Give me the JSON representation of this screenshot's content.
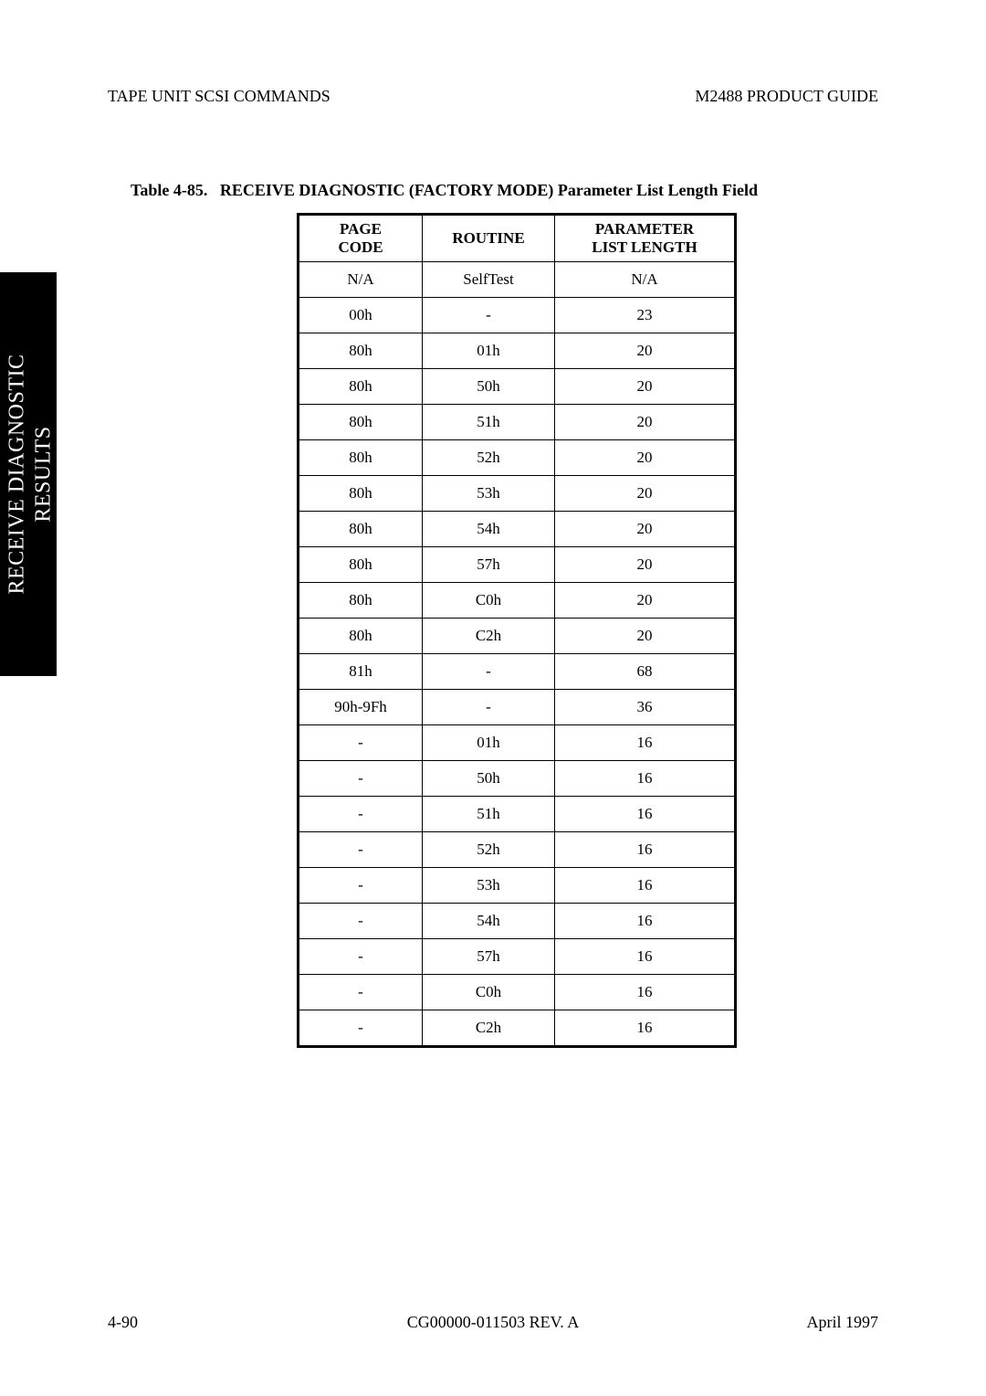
{
  "header": {
    "left": "TAPE UNIT SCSI COMMANDS",
    "right": "M2488 PRODUCT GUIDE"
  },
  "sidetab": {
    "line1": "RECEIVE DIAGNOSTIC",
    "line2": "RESULTS"
  },
  "caption": {
    "label": "Table 4-85.",
    "text": "RECEIVE DIAGNOSTIC (FACTORY MODE) Parameter List Length Field"
  },
  "table": {
    "headers": {
      "page_code_line1": "PAGE",
      "page_code_line2": "CODE",
      "routine": "ROUTINE",
      "param_line1": "PARAMETER",
      "param_line2": "LIST LENGTH"
    },
    "rows": [
      {
        "page": "N/A",
        "routine": "SelfTest",
        "param": "N/A"
      },
      {
        "page": "00h",
        "routine": "-",
        "param": "23"
      },
      {
        "page": "80h",
        "routine": "01h",
        "param": "20"
      },
      {
        "page": "80h",
        "routine": "50h",
        "param": "20"
      },
      {
        "page": "80h",
        "routine": "51h",
        "param": "20"
      },
      {
        "page": "80h",
        "routine": "52h",
        "param": "20"
      },
      {
        "page": "80h",
        "routine": "53h",
        "param": "20"
      },
      {
        "page": "80h",
        "routine": "54h",
        "param": "20"
      },
      {
        "page": "80h",
        "routine": "57h",
        "param": "20"
      },
      {
        "page": "80h",
        "routine": "C0h",
        "param": "20"
      },
      {
        "page": "80h",
        "routine": "C2h",
        "param": "20"
      },
      {
        "page": "81h",
        "routine": "-",
        "param": "68"
      },
      {
        "page": "90h-9Fh",
        "routine": "-",
        "param": "36"
      },
      {
        "page": "-",
        "routine": "01h",
        "param": "16"
      },
      {
        "page": "-",
        "routine": "50h",
        "param": "16"
      },
      {
        "page": "-",
        "routine": "51h",
        "param": "16"
      },
      {
        "page": "-",
        "routine": "52h",
        "param": "16"
      },
      {
        "page": "-",
        "routine": "53h",
        "param": "16"
      },
      {
        "page": "-",
        "routine": "54h",
        "param": "16"
      },
      {
        "page": "-",
        "routine": "57h",
        "param": "16"
      },
      {
        "page": "-",
        "routine": "C0h",
        "param": "16"
      },
      {
        "page": "-",
        "routine": "C2h",
        "param": "16"
      }
    ]
  },
  "footer": {
    "left": "4-90",
    "center": "CG00000-011503 REV. A",
    "right": "April 1997"
  }
}
